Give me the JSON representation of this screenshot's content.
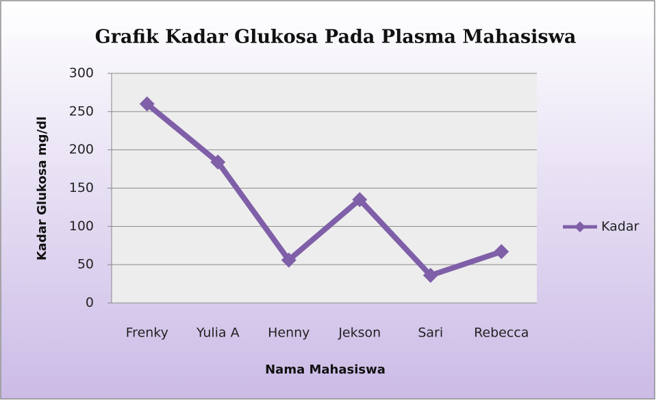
{
  "chart_data": {
    "type": "line",
    "title": "Grafik Kadar Glukosa Pada Plasma Mahasiswa",
    "x_label": "Nama Mahasiswa",
    "y_label": "Kadar Glukosa mg/dl",
    "categories": [
      "Frenky",
      "Yulia A",
      "Henny",
      "Jekson",
      "Sari",
      "Rebecca"
    ],
    "series": [
      {
        "name": "Kadar",
        "color": "#7f5fa8",
        "values": [
          260,
          184,
          56,
          135,
          36,
          67
        ]
      }
    ],
    "ylim": [
      0,
      300
    ],
    "yticks": [
      0,
      50,
      100,
      150,
      200,
      250,
      300
    ],
    "grid": true,
    "legend": "right"
  }
}
